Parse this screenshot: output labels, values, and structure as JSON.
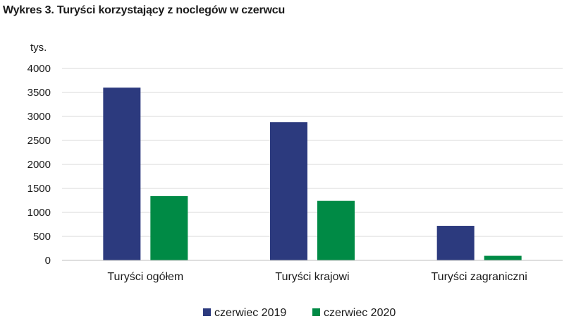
{
  "chart_data": {
    "type": "bar",
    "title": "Wykres 3. Turyści korzystający z noclegów w czerwcu",
    "unit_label": "tys.",
    "categories": [
      "Turyści ogółem",
      "Turyści krajowi",
      "Turyści zagraniczni"
    ],
    "series": [
      {
        "name": "czerwiec 2019",
        "color": "#2c3a7e",
        "values": [
          3600,
          2880,
          720
        ]
      },
      {
        "name": "czerwiec 2020",
        "color": "#008a45",
        "values": [
          1340,
          1240,
          95
        ]
      }
    ],
    "ylim": [
      0,
      4000
    ],
    "yticks": [
      0,
      500,
      1000,
      1500,
      2000,
      2500,
      3000,
      3500,
      4000
    ],
    "grid": true,
    "legend_position": "bottom"
  }
}
